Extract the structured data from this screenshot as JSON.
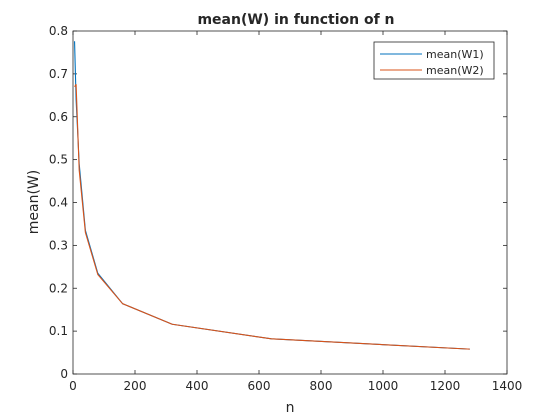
{
  "chart_data": {
    "type": "line",
    "title": "mean(W) in function of n",
    "xlabel": "n",
    "ylabel": "mean(W)",
    "xlim": [
      0,
      1400
    ],
    "ylim": [
      0,
      0.8
    ],
    "xticks": [
      "0",
      "200",
      "400",
      "600",
      "800",
      "1000",
      "1200",
      "1400"
    ],
    "yticks": [
      "0",
      "0.1",
      "0.2",
      "0.3",
      "0.4",
      "0.5",
      "0.6",
      "0.7",
      "0.8"
    ],
    "grid": false,
    "legend_position": "top-right",
    "x": [
      5,
      10,
      20,
      40,
      80,
      160,
      320,
      640,
      1280
    ],
    "series": [
      {
        "name": "mean(W1)",
        "color": "#0072BD",
        "values": [
          0.776,
          0.64,
          0.49,
          0.335,
          0.235,
          0.164,
          0.116,
          0.082,
          0.058
        ]
      },
      {
        "name": "mean(W2)",
        "color": "#D95319",
        "values": [
          0.67,
          0.675,
          0.475,
          0.33,
          0.232,
          0.164,
          0.116,
          0.082,
          0.058
        ]
      }
    ]
  }
}
